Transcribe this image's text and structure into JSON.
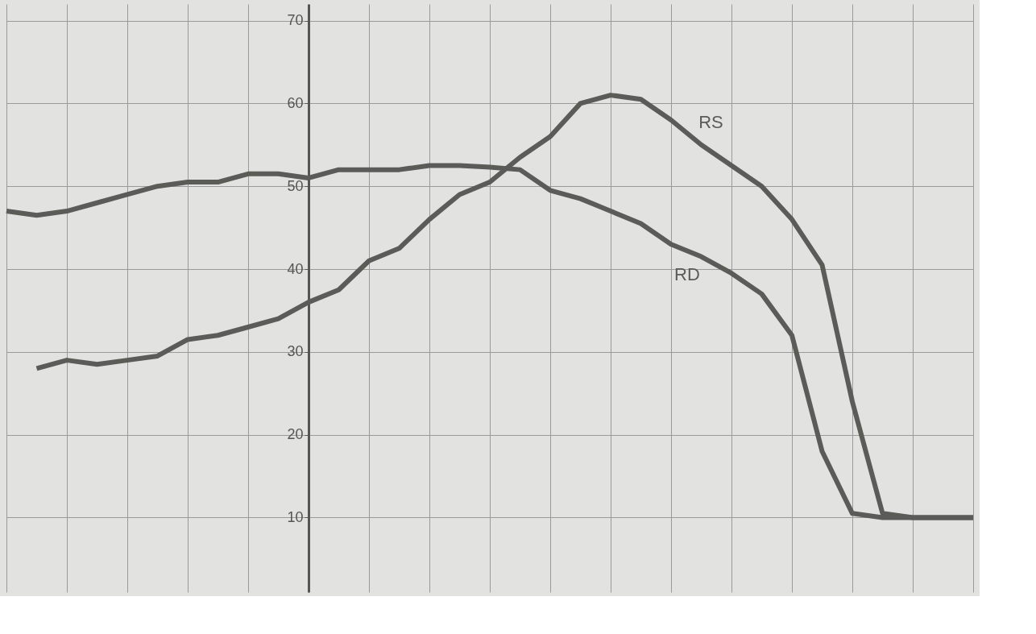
{
  "chart_data": {
    "type": "line",
    "categories": [
      null,
      null,
      null,
      null,
      null,
      null,
      null,
      null,
      null,
      null,
      null,
      null,
      null,
      null,
      null,
      null,
      null,
      null,
      null,
      null,
      null,
      null,
      null,
      null,
      null,
      null,
      null,
      null,
      null,
      null,
      null,
      null,
      null
    ],
    "series": [
      {
        "name": "RS",
        "color": "#5b5b57",
        "values": [
          null,
          28,
          29,
          28.5,
          29,
          29.5,
          31.5,
          32,
          33,
          34,
          36,
          37.5,
          41,
          42.5,
          46,
          49,
          50.5,
          53.5,
          56,
          60,
          61,
          60.5,
          58,
          55,
          52.5,
          50,
          46,
          40.5,
          24,
          10.5,
          10,
          10,
          10
        ]
      },
      {
        "name": "RD",
        "color": "#5b5b57",
        "values": [
          47,
          46.5,
          47,
          48,
          49,
          50,
          50.5,
          50.5,
          51.5,
          51.5,
          51,
          52,
          52,
          52,
          52.5,
          52.5,
          52.3,
          52,
          49.5,
          48.5,
          47,
          45.5,
          43,
          41.5,
          39.5,
          37,
          32,
          18,
          10.5,
          10,
          10,
          10,
          10
        ]
      }
    ],
    "ylim": [
      1,
      72
    ],
    "yticks": [
      10,
      20,
      30,
      40,
      50,
      60,
      70
    ],
    "grid": true,
    "tick_labels": "y",
    "marker": "none",
    "line_style": "solid",
    "legend": false
  }
}
